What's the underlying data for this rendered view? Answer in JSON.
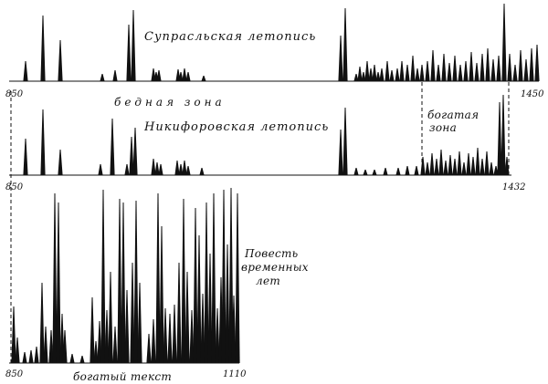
{
  "chart_data": [
    {
      "type": "bar",
      "title": "Супрасльская летопись",
      "x_start": "850",
      "x_end": "1450",
      "annotation": "бедная зона",
      "baseline": [
        10,
        89,
        590
      ],
      "spikes": [
        {
          "x": 28,
          "h": 22
        },
        {
          "x": 47,
          "h": 72
        },
        {
          "x": 66,
          "h": 45
        },
        {
          "x": 112,
          "h": 8
        },
        {
          "x": 126,
          "h": 12
        },
        {
          "x": 141,
          "h": 62
        },
        {
          "x": 146,
          "h": 78
        },
        {
          "x": 168,
          "h": 14
        },
        {
          "x": 171,
          "h": 10
        },
        {
          "x": 174,
          "h": 12
        },
        {
          "x": 195,
          "h": 13
        },
        {
          "x": 198,
          "h": 10
        },
        {
          "x": 202,
          "h": 14
        },
        {
          "x": 206,
          "h": 10
        },
        {
          "x": 223,
          "h": 6
        },
        {
          "x": 373,
          "h": 50
        },
        {
          "x": 378,
          "h": 80
        },
        {
          "x": 390,
          "h": 8
        },
        {
          "x": 394,
          "h": 16
        },
        {
          "x": 398,
          "h": 10
        },
        {
          "x": 402,
          "h": 22
        },
        {
          "x": 406,
          "h": 14
        },
        {
          "x": 410,
          "h": 18
        },
        {
          "x": 414,
          "h": 10
        },
        {
          "x": 418,
          "h": 14
        },
        {
          "x": 424,
          "h": 22
        },
        {
          "x": 429,
          "h": 12
        },
        {
          "x": 435,
          "h": 14
        },
        {
          "x": 440,
          "h": 22
        },
        {
          "x": 446,
          "h": 18
        },
        {
          "x": 452,
          "h": 28
        },
        {
          "x": 457,
          "h": 14
        },
        {
          "x": 462,
          "h": 18
        },
        {
          "x": 468,
          "h": 22
        },
        {
          "x": 474,
          "h": 34
        },
        {
          "x": 480,
          "h": 18
        },
        {
          "x": 486,
          "h": 30
        },
        {
          "x": 492,
          "h": 20
        },
        {
          "x": 498,
          "h": 28
        },
        {
          "x": 504,
          "h": 18
        },
        {
          "x": 510,
          "h": 22
        },
        {
          "x": 516,
          "h": 32
        },
        {
          "x": 522,
          "h": 20
        },
        {
          "x": 528,
          "h": 30
        },
        {
          "x": 534,
          "h": 36
        },
        {
          "x": 540,
          "h": 24
        },
        {
          "x": 546,
          "h": 28
        },
        {
          "x": 552,
          "h": 85
        },
        {
          "x": 558,
          "h": 30
        },
        {
          "x": 564,
          "h": 18
        },
        {
          "x": 570,
          "h": 34
        },
        {
          "x": 576,
          "h": 24
        },
        {
          "x": 582,
          "h": 36
        },
        {
          "x": 588,
          "h": 40
        }
      ]
    },
    {
      "type": "bar",
      "title": "Никифоровская летопись",
      "x_start": "850",
      "x_end": "1432",
      "annotation": "богатая зона",
      "baseline": [
        10,
        192,
        560
      ],
      "spikes": [
        {
          "x": 28,
          "h": 40
        },
        {
          "x": 47,
          "h": 72
        },
        {
          "x": 66,
          "h": 28
        },
        {
          "x": 110,
          "h": 12
        },
        {
          "x": 123,
          "h": 62
        },
        {
          "x": 139,
          "h": 12
        },
        {
          "x": 144,
          "h": 42
        },
        {
          "x": 148,
          "h": 52
        },
        {
          "x": 168,
          "h": 18
        },
        {
          "x": 172,
          "h": 14
        },
        {
          "x": 176,
          "h": 12
        },
        {
          "x": 194,
          "h": 16
        },
        {
          "x": 198,
          "h": 12
        },
        {
          "x": 202,
          "h": 16
        },
        {
          "x": 206,
          "h": 10
        },
        {
          "x": 221,
          "h": 8
        },
        {
          "x": 373,
          "h": 50
        },
        {
          "x": 378,
          "h": 74
        },
        {
          "x": 390,
          "h": 8
        },
        {
          "x": 400,
          "h": 6
        },
        {
          "x": 410,
          "h": 6
        },
        {
          "x": 422,
          "h": 8
        },
        {
          "x": 436,
          "h": 8
        },
        {
          "x": 446,
          "h": 10
        },
        {
          "x": 456,
          "h": 10
        },
        {
          "x": 463,
          "h": 20
        },
        {
          "x": 468,
          "h": 14
        },
        {
          "x": 473,
          "h": 24
        },
        {
          "x": 478,
          "h": 18
        },
        {
          "x": 483,
          "h": 28
        },
        {
          "x": 488,
          "h": 16
        },
        {
          "x": 493,
          "h": 22
        },
        {
          "x": 498,
          "h": 18
        },
        {
          "x": 503,
          "h": 26
        },
        {
          "x": 508,
          "h": 14
        },
        {
          "x": 513,
          "h": 24
        },
        {
          "x": 518,
          "h": 20
        },
        {
          "x": 523,
          "h": 30
        },
        {
          "x": 528,
          "h": 18
        },
        {
          "x": 533,
          "h": 26
        },
        {
          "x": 538,
          "h": 14
        },
        {
          "x": 543,
          "h": 10
        },
        {
          "x": 547,
          "h": 80
        },
        {
          "x": 551,
          "h": 88
        },
        {
          "x": 555,
          "h": 20
        }
      ]
    },
    {
      "type": "bar",
      "title": "Повесть временных лет",
      "x_start": "850",
      "x_end": "1110",
      "annotation": "богатый текст",
      "baseline": [
        10,
        398,
        262
      ],
      "spikes": [
        {
          "x": 15,
          "h": 62
        },
        {
          "x": 19,
          "h": 28
        },
        {
          "x": 27,
          "h": 12
        },
        {
          "x": 34,
          "h": 14
        },
        {
          "x": 40,
          "h": 18
        },
        {
          "x": 46,
          "h": 88
        },
        {
          "x": 50,
          "h": 40
        },
        {
          "x": 56,
          "h": 36
        },
        {
          "x": 60,
          "h": 186
        },
        {
          "x": 64,
          "h": 176
        },
        {
          "x": 68,
          "h": 54
        },
        {
          "x": 71,
          "h": 36
        },
        {
          "x": 79,
          "h": 10
        },
        {
          "x": 90,
          "h": 8
        },
        {
          "x": 101,
          "h": 72
        },
        {
          "x": 105,
          "h": 24
        },
        {
          "x": 109,
          "h": 46
        },
        {
          "x": 113,
          "h": 190
        },
        {
          "x": 117,
          "h": 58
        },
        {
          "x": 121,
          "h": 100
        },
        {
          "x": 126,
          "h": 40
        },
        {
          "x": 131,
          "h": 180
        },
        {
          "x": 135,
          "h": 176
        },
        {
          "x": 139,
          "h": 80
        },
        {
          "x": 145,
          "h": 110
        },
        {
          "x": 149,
          "h": 178
        },
        {
          "x": 153,
          "h": 88
        },
        {
          "x": 163,
          "h": 32
        },
        {
          "x": 168,
          "h": 48
        },
        {
          "x": 173,
          "h": 186
        },
        {
          "x": 177,
          "h": 150
        },
        {
          "x": 181,
          "h": 60
        },
        {
          "x": 186,
          "h": 54
        },
        {
          "x": 191,
          "h": 64
        },
        {
          "x": 196,
          "h": 110
        },
        {
          "x": 201,
          "h": 180
        },
        {
          "x": 205,
          "h": 100
        },
        {
          "x": 210,
          "h": 58
        },
        {
          "x": 214,
          "h": 170
        },
        {
          "x": 218,
          "h": 140
        },
        {
          "x": 222,
          "h": 76
        },
        {
          "x": 226,
          "h": 176
        },
        {
          "x": 230,
          "h": 120
        },
        {
          "x": 234,
          "h": 186
        },
        {
          "x": 238,
          "h": 60
        },
        {
          "x": 242,
          "h": 94
        },
        {
          "x": 245,
          "h": 190
        },
        {
          "x": 249,
          "h": 130
        },
        {
          "x": 253,
          "h": 192
        },
        {
          "x": 256,
          "h": 74
        },
        {
          "x": 260,
          "h": 186
        }
      ]
    }
  ]
}
